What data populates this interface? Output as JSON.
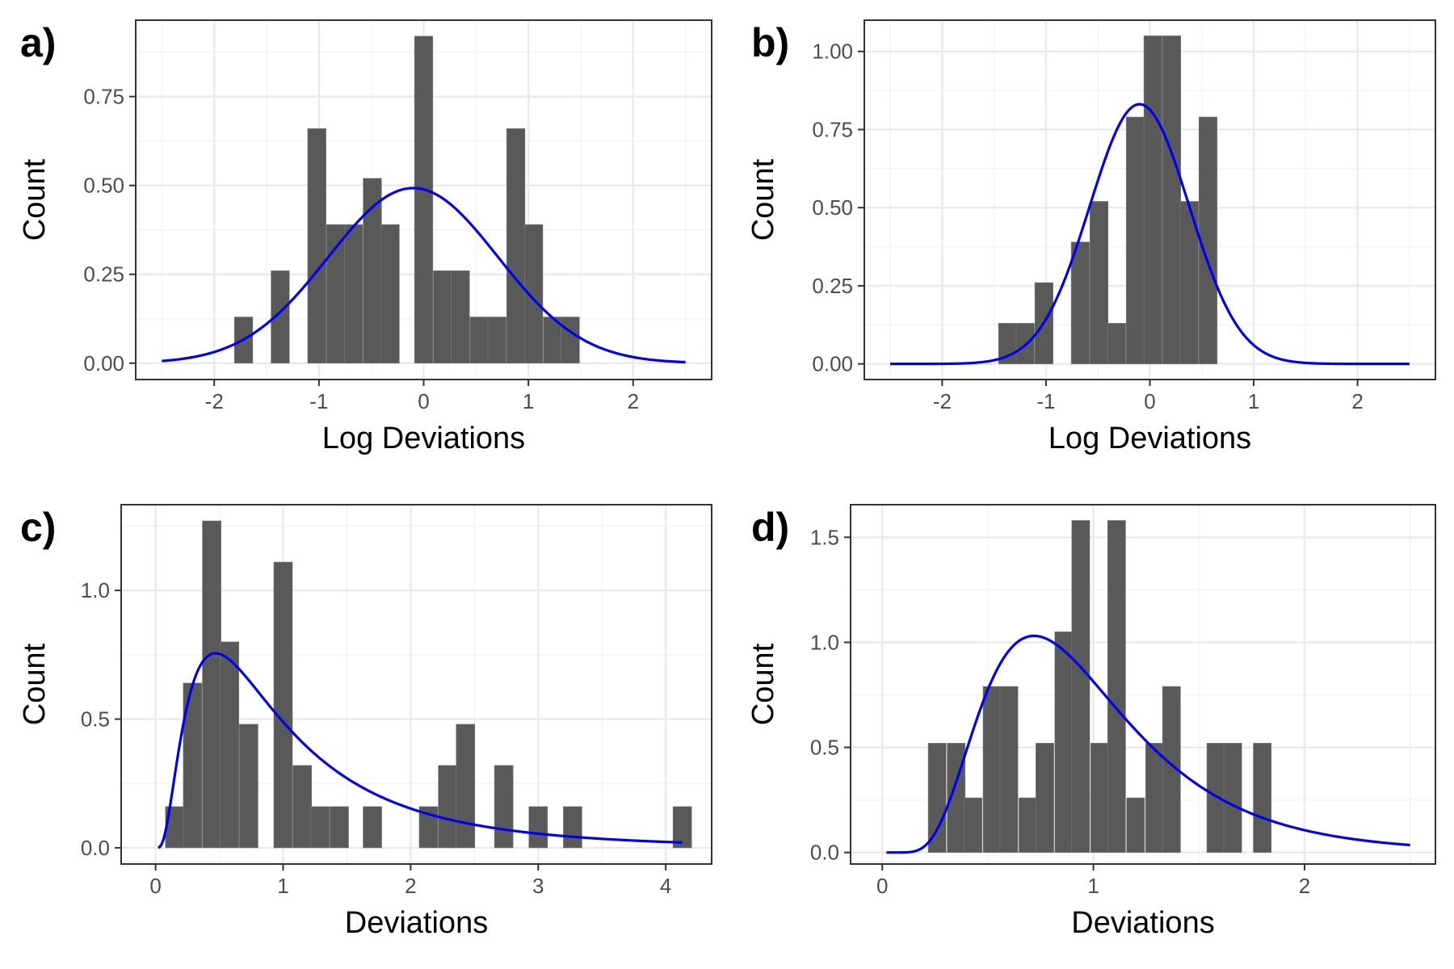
{
  "chart_data": [
    {
      "panel": "a)",
      "type": "bar",
      "xlabel": "Log Deviations",
      "ylabel": "Count",
      "xlim": [
        -2.75,
        2.75
      ],
      "ylim": [
        -0.046,
        0.965
      ],
      "xticks": [
        -2,
        -1,
        0,
        1,
        2
      ],
      "xtick_labels": [
        "-2",
        "-1",
        "0",
        "1",
        "2"
      ],
      "yticks": [
        0,
        0.25,
        0.5,
        0.75
      ],
      "ytick_labels": [
        "0.00",
        "0.25",
        "0.50",
        "0.75"
      ],
      "grid": true,
      "bin_width": 0.175,
      "bars": [
        {
          "x": -1.72,
          "y": 0.13
        },
        {
          "x": -1.37,
          "y": 0.26
        },
        {
          "x": -1.02,
          "y": 0.66
        },
        {
          "x": -0.84,
          "y": 0.39
        },
        {
          "x": -0.67,
          "y": 0.39
        },
        {
          "x": -0.49,
          "y": 0.52
        },
        {
          "x": -0.32,
          "y": 0.39
        },
        {
          "x": 0.0,
          "y": 0.92
        },
        {
          "x": 0.18,
          "y": 0.26
        },
        {
          "x": 0.35,
          "y": 0.26
        },
        {
          "x": 0.53,
          "y": 0.13
        },
        {
          "x": 0.7,
          "y": 0.13
        },
        {
          "x": 0.88,
          "y": 0.66
        },
        {
          "x": 1.05,
          "y": 0.39
        },
        {
          "x": 1.23,
          "y": 0.13
        },
        {
          "x": 1.4,
          "y": 0.13
        }
      ],
      "curve": {
        "kind": "normal",
        "mean": -0.1,
        "sd": 0.81,
        "x_range": [
          -2.5,
          2.5
        ],
        "color": "#0000ee"
      }
    },
    {
      "panel": "b)",
      "type": "bar",
      "xlabel": "Log Deviations",
      "ylabel": "Count",
      "xlim": [
        -2.75,
        2.75
      ],
      "ylim": [
        -0.05,
        1.1
      ],
      "xticks": [
        -2,
        -1,
        0,
        1,
        2
      ],
      "xtick_labels": [
        "-2",
        "-1",
        "0",
        "1",
        "2"
      ],
      "yticks": [
        0,
        0.25,
        0.5,
        0.75,
        1.0
      ],
      "ytick_labels": [
        "0.00",
        "0.25",
        "0.50",
        "0.75",
        "1.00"
      ],
      "grid": true,
      "bin_width": 0.175,
      "bars": [
        {
          "x": -1.37,
          "y": 0.13
        },
        {
          "x": -1.2,
          "y": 0.13
        },
        {
          "x": -1.02,
          "y": 0.26
        },
        {
          "x": -0.67,
          "y": 0.39
        },
        {
          "x": -0.49,
          "y": 0.52
        },
        {
          "x": -0.32,
          "y": 0.13
        },
        {
          "x": -0.14,
          "y": 0.79
        },
        {
          "x": 0.03,
          "y": 1.05
        },
        {
          "x": 0.21,
          "y": 1.05
        },
        {
          "x": 0.38,
          "y": 0.52
        },
        {
          "x": 0.56,
          "y": 0.79
        }
      ],
      "curve": {
        "kind": "normal",
        "mean": -0.1,
        "sd": 0.48,
        "x_range": [
          -2.5,
          2.5
        ],
        "color": "#0000ee"
      }
    },
    {
      "panel": "c)",
      "type": "bar",
      "xlabel": "Deviations",
      "ylabel": "Count",
      "xlim": [
        -0.27,
        4.36
      ],
      "ylim": [
        -0.063,
        1.333
      ],
      "xticks": [
        0,
        1,
        2,
        3,
        4
      ],
      "xtick_labels": [
        "0",
        "1",
        "2",
        "3",
        "4"
      ],
      "yticks": [
        0,
        0.5,
        1.0
      ],
      "ytick_labels": [
        "0.0",
        "0.5",
        "1.0"
      ],
      "grid": true,
      "bin_width": 0.146,
      "bars": [
        {
          "x": 0.15,
          "y": 0.16
        },
        {
          "x": 0.29,
          "y": 0.64
        },
        {
          "x": 0.44,
          "y": 1.27
        },
        {
          "x": 0.58,
          "y": 0.8
        },
        {
          "x": 0.73,
          "y": 0.48
        },
        {
          "x": 1.0,
          "y": 1.11
        },
        {
          "x": 1.15,
          "y": 0.32
        },
        {
          "x": 1.29,
          "y": 0.16
        },
        {
          "x": 1.44,
          "y": 0.16
        },
        {
          "x": 1.7,
          "y": 0.16
        },
        {
          "x": 2.14,
          "y": 0.16
        },
        {
          "x": 2.29,
          "y": 0.32
        },
        {
          "x": 2.43,
          "y": 0.48
        },
        {
          "x": 2.73,
          "y": 0.32
        },
        {
          "x": 3.0,
          "y": 0.16
        },
        {
          "x": 3.27,
          "y": 0.16
        },
        {
          "x": 4.13,
          "y": 0.16
        }
      ],
      "curve": {
        "kind": "lognormal",
        "mu": -0.1,
        "sigma": 0.81,
        "x_range": [
          0.02,
          4.13
        ],
        "color": "#0000ee"
      }
    },
    {
      "panel": "d)",
      "type": "bar",
      "xlabel": "Deviations",
      "ylabel": "Count",
      "xlim": [
        -0.15,
        2.62
      ],
      "ylim": [
        -0.055,
        1.655
      ],
      "xticks": [
        0,
        1,
        2
      ],
      "xtick_labels": [
        "0",
        "1",
        "2"
      ],
      "yticks": [
        0,
        0.5,
        1.0,
        1.5
      ],
      "ytick_labels": [
        "0.0",
        "0.5",
        "1.0",
        "1.5"
      ],
      "grid": true,
      "bin_width": 0.085,
      "bars": [
        {
          "x": 0.26,
          "y": 0.52
        },
        {
          "x": 0.35,
          "y": 0.52
        },
        {
          "x": 0.43,
          "y": 0.26
        },
        {
          "x": 0.52,
          "y": 0.79
        },
        {
          "x": 0.6,
          "y": 0.79
        },
        {
          "x": 0.69,
          "y": 0.26
        },
        {
          "x": 0.77,
          "y": 0.52
        },
        {
          "x": 0.86,
          "y": 1.05
        },
        {
          "x": 0.94,
          "y": 1.58
        },
        {
          "x": 1.03,
          "y": 0.52
        },
        {
          "x": 1.11,
          "y": 1.58
        },
        {
          "x": 1.2,
          "y": 0.26
        },
        {
          "x": 1.29,
          "y": 0.52
        },
        {
          "x": 1.37,
          "y": 0.79
        },
        {
          "x": 1.58,
          "y": 0.52
        },
        {
          "x": 1.66,
          "y": 0.52
        },
        {
          "x": 1.8,
          "y": 0.52
        }
      ],
      "curve": {
        "kind": "lognormal",
        "mu": -0.1,
        "sigma": 0.48,
        "x_range": [
          0.02,
          2.5
        ],
        "color": "#0000ee"
      }
    }
  ],
  "colors": {
    "bar_fill": "#595959",
    "bar_edge": "#7a7a7a",
    "grid_major": "#ebebeb",
    "grid_minor": "#f4f4f4",
    "panel_border": "#333333",
    "tick_text": "#4d4d4d"
  }
}
